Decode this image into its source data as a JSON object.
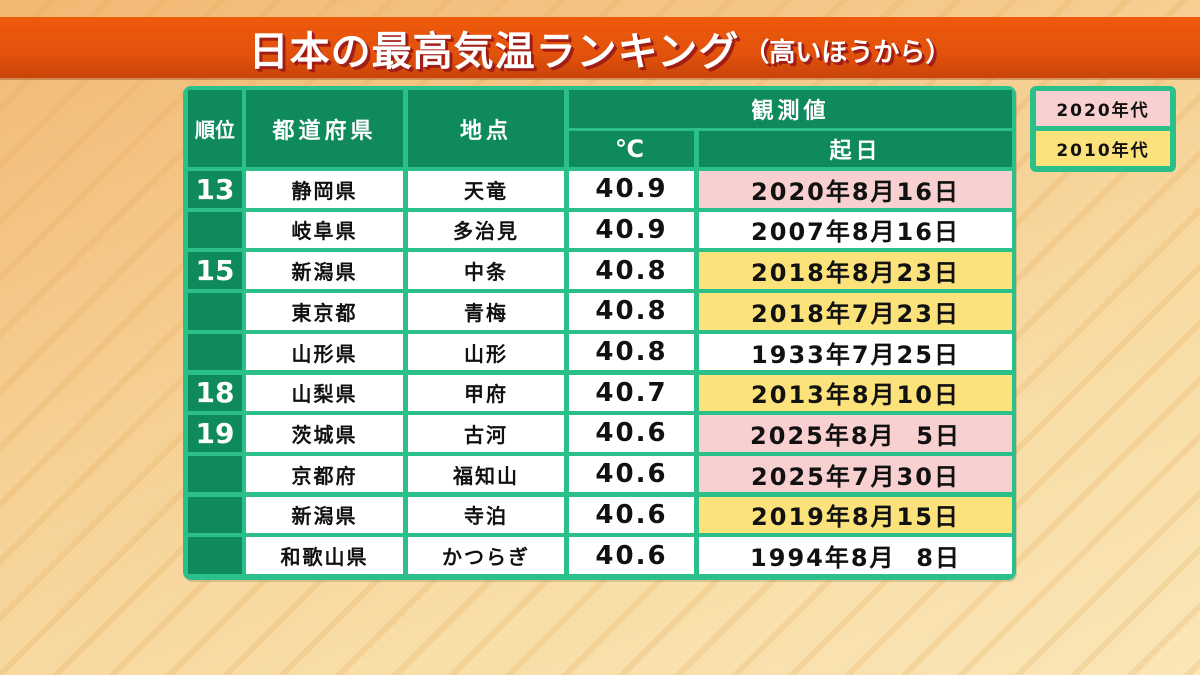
{
  "title": {
    "main": "日本の最高気温ランキング",
    "sub": "（高いほうから）"
  },
  "table": {
    "headers": {
      "rank": "順位",
      "prefecture": "都道府県",
      "location": "地点",
      "observed": "観測値",
      "celsius": "℃",
      "date": "起日"
    },
    "rows": [
      {
        "rank": "13",
        "prefecture": "静岡県",
        "location": "天竜",
        "temp": "40.9",
        "date": "2020年8月16日",
        "decade": "2020s"
      },
      {
        "rank": "",
        "prefecture": "岐阜県",
        "location": "多治見",
        "temp": "40.9",
        "date": "2007年8月16日",
        "decade": ""
      },
      {
        "rank": "15",
        "prefecture": "新潟県",
        "location": "中条",
        "temp": "40.8",
        "date": "2018年8月23日",
        "decade": "2010s"
      },
      {
        "rank": "",
        "prefecture": "東京都",
        "location": "青梅",
        "temp": "40.8",
        "date": "2018年7月23日",
        "decade": "2010s"
      },
      {
        "rank": "",
        "prefecture": "山形県",
        "location": "山形",
        "temp": "40.8",
        "date": "1933年7月25日",
        "decade": ""
      },
      {
        "rank": "18",
        "prefecture": "山梨県",
        "location": "甲府",
        "temp": "40.7",
        "date": "2013年8月10日",
        "decade": "2010s"
      },
      {
        "rank": "19",
        "prefecture": "茨城県",
        "location": "古河",
        "temp": "40.6",
        "date": "2025年8月  5日",
        "decade": "2020s"
      },
      {
        "rank": "",
        "prefecture": "京都府",
        "location": "福知山",
        "temp": "40.6",
        "date": "2025年7月30日",
        "decade": "2020s"
      },
      {
        "rank": "",
        "prefecture": "新潟県",
        "location": "寺泊",
        "temp": "40.6",
        "date": "2019年8月15日",
        "decade": "2010s"
      },
      {
        "rank": "",
        "prefecture": "和歌山県",
        "location": "かつらぎ",
        "temp": "40.6",
        "date": "1994年8月  8日",
        "decade": ""
      }
    ]
  },
  "legend": {
    "items": [
      {
        "label": "2020年代",
        "color": "#f9d0d0"
      },
      {
        "label": "2010年代",
        "color": "#fbe27b"
      }
    ]
  },
  "colors": {
    "banner": "#e2520c",
    "table_border": "#2bbf8a",
    "header_bg": "#0e8a5c",
    "highlight_2020s": "#f9d0d0",
    "highlight_2010s": "#fbe27b"
  }
}
